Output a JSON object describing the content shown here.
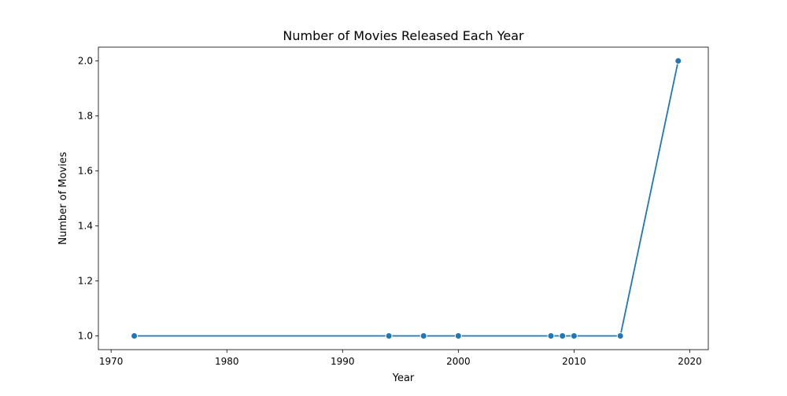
{
  "chart_data": {
    "type": "line",
    "title": "Number of Movies Released Each Year",
    "xlabel": "Year",
    "ylabel": "Number of Movies",
    "xlim": [
      1968.9,
      2021.6
    ],
    "ylim": [
      0.95,
      2.05
    ],
    "xticks": [
      1970,
      1980,
      1990,
      2000,
      2010,
      2020
    ],
    "yticks": [
      1.0,
      1.2,
      1.4,
      1.6,
      1.8,
      2.0
    ],
    "xtick_labels": [
      "1970",
      "1980",
      "1990",
      "2000",
      "2010",
      "2020"
    ],
    "ytick_labels": [
      "1.0",
      "1.2",
      "1.4",
      "1.6",
      "1.8",
      "2.0"
    ],
    "grid": false,
    "legend": false,
    "series": [
      {
        "color": "#1f77b4",
        "marker": "circle",
        "x": [
          1972,
          1994,
          1997,
          2000,
          2008,
          2009,
          2010,
          2014,
          2019
        ],
        "y": [
          1,
          1,
          1,
          1,
          1,
          1,
          1,
          1,
          2
        ]
      }
    ]
  }
}
